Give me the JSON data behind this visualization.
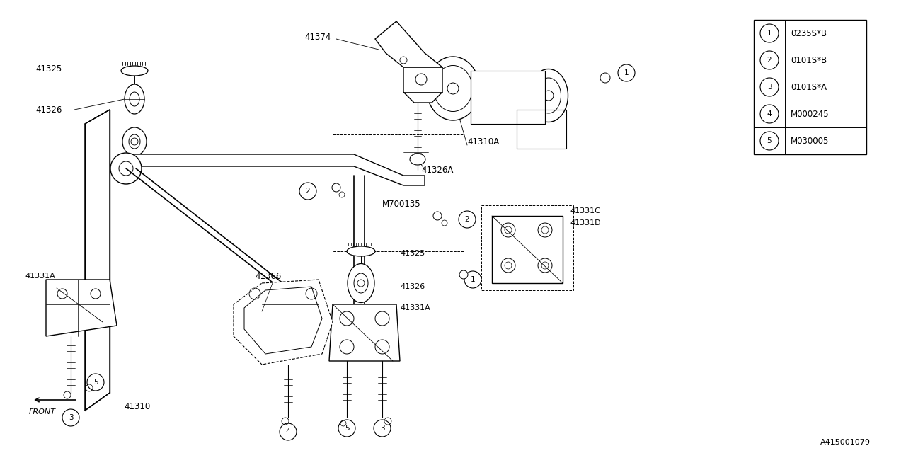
{
  "background_color": "#ffffff",
  "line_color": "#000000",
  "legend_items": [
    {
      "num": "1",
      "code": "0235S*B"
    },
    {
      "num": "2",
      "code": "0101S*B"
    },
    {
      "num": "3",
      "code": "0101S*A"
    },
    {
      "num": "4",
      "code": "M000245"
    },
    {
      "num": "5",
      "code": "M030005"
    }
  ],
  "diagram_id": "A415001079",
  "fig_width": 12.8,
  "fig_height": 6.4,
  "dpi": 100
}
